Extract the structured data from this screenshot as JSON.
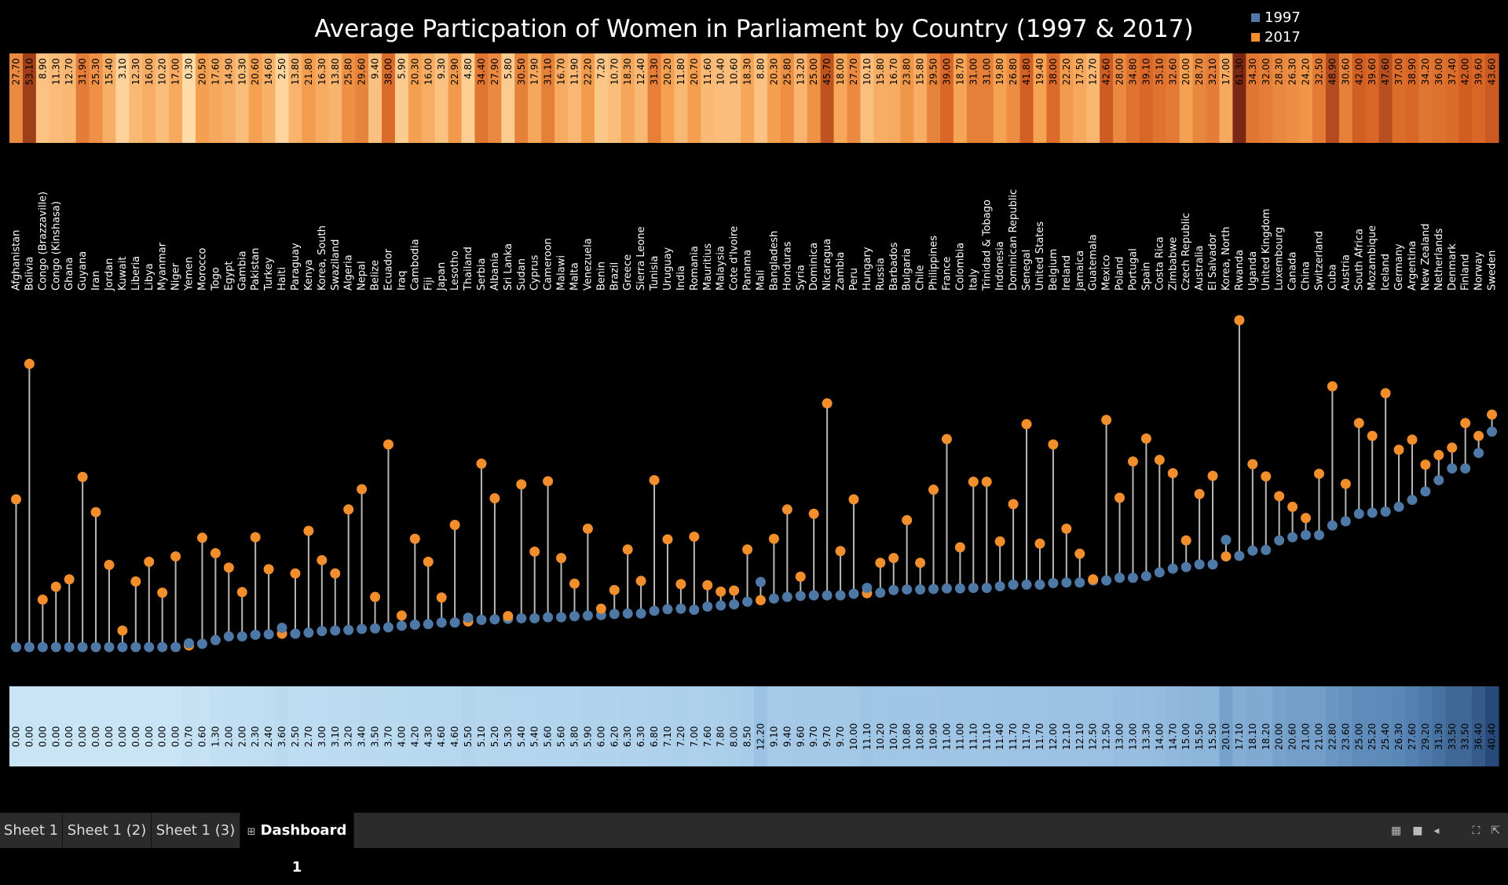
{
  "title": "Average Particpation of Women in Parliament by Country (1997 & 2017)",
  "legend": [
    {
      "label": "1997",
      "color": "#4e79a7"
    },
    {
      "label": "2017",
      "color": "#f28e2b"
    }
  ],
  "tabs": [
    {
      "label": "Sheet 1",
      "active": false
    },
    {
      "label": "Sheet 1 (2)",
      "active": false
    },
    {
      "label": "Sheet 1 (3)",
      "active": false
    },
    {
      "label": "Dashboard 1",
      "active": true,
      "icon": "dashboard-grid-icon"
    }
  ],
  "toolbar_icons": [
    "presentation-view-icon",
    "single-view-icon",
    "back-icon",
    "fullscreen-icon",
    "share-icon"
  ],
  "chart_data": {
    "type": "scatter",
    "title": "Average Particpation of Women in Parliament by Country (1997 & 2017)",
    "series": [
      {
        "name": "1997",
        "color": "#4e79a7"
      },
      {
        "name": "2017",
        "color": "#f28e2b"
      }
    ],
    "ylim": [
      0,
      62
    ],
    "countries": [
      {
        "name": "Afghanistan",
        "v1997": 0.0,
        "v2017": 27.7
      },
      {
        "name": "Bolivia",
        "v1997": 0.0,
        "v2017": 53.1
      },
      {
        "name": "Congo (Brazzaville)",
        "v1997": 0.0,
        "v2017": 8.9
      },
      {
        "name": "Congo (Kinshasa)",
        "v1997": 0.0,
        "v2017": 11.3
      },
      {
        "name": "Ghana",
        "v1997": 0.0,
        "v2017": 12.7
      },
      {
        "name": "Guyana",
        "v1997": 0.0,
        "v2017": 31.9
      },
      {
        "name": "Iran",
        "v1997": 0.0,
        "v2017": 25.3
      },
      {
        "name": "Jordan",
        "v1997": 0.0,
        "v2017": 15.4
      },
      {
        "name": "Kuwait",
        "v1997": 0.0,
        "v2017": 3.1
      },
      {
        "name": "Liberia",
        "v1997": 0.0,
        "v2017": 12.3
      },
      {
        "name": "Libya",
        "v1997": 0.0,
        "v2017": 16.0
      },
      {
        "name": "Myanmar",
        "v1997": 0.0,
        "v2017": 10.2
      },
      {
        "name": "Niger",
        "v1997": 0.0,
        "v2017": 17.0
      },
      {
        "name": "Yemen",
        "v1997": 0.7,
        "v2017": 0.3
      },
      {
        "name": "Morocco",
        "v1997": 0.6,
        "v2017": 20.5
      },
      {
        "name": "Togo",
        "v1997": 1.3,
        "v2017": 17.6
      },
      {
        "name": "Egypt",
        "v1997": 2.0,
        "v2017": 14.9
      },
      {
        "name": "Gambia",
        "v1997": 2.0,
        "v2017": 10.3
      },
      {
        "name": "Pakistan",
        "v1997": 2.3,
        "v2017": 20.6
      },
      {
        "name": "Turkey",
        "v1997": 2.4,
        "v2017": 14.6
      },
      {
        "name": "Haiti",
        "v1997": 3.6,
        "v2017": 2.5
      },
      {
        "name": "Paraguay",
        "v1997": 2.5,
        "v2017": 13.8
      },
      {
        "name": "Kenya",
        "v1997": 2.7,
        "v2017": 21.8
      },
      {
        "name": "Korea, South",
        "v1997": 3.0,
        "v2017": 16.3
      },
      {
        "name": "Swaziland",
        "v1997": 3.1,
        "v2017": 13.8
      },
      {
        "name": "Algeria",
        "v1997": 3.2,
        "v2017": 25.8
      },
      {
        "name": "Nepal",
        "v1997": 3.4,
        "v2017": 29.6
      },
      {
        "name": "Belize",
        "v1997": 3.5,
        "v2017": 9.4
      },
      {
        "name": "Ecuador",
        "v1997": 3.7,
        "v2017": 38.0
      },
      {
        "name": "Iraq",
        "v1997": 4.0,
        "v2017": 5.9
      },
      {
        "name": "Cambodia",
        "v1997": 4.2,
        "v2017": 20.3
      },
      {
        "name": "Fiji",
        "v1997": 4.3,
        "v2017": 16.0
      },
      {
        "name": "Japan",
        "v1997": 4.6,
        "v2017": 9.3
      },
      {
        "name": "Lesotho",
        "v1997": 4.6,
        "v2017": 22.9
      },
      {
        "name": "Thailand",
        "v1997": 5.5,
        "v2017": 4.8
      },
      {
        "name": "Serbia",
        "v1997": 5.1,
        "v2017": 34.4
      },
      {
        "name": "Albania",
        "v1997": 5.2,
        "v2017": 27.9
      },
      {
        "name": "Sri Lanka",
        "v1997": 5.3,
        "v2017": 5.8
      },
      {
        "name": "Sudan",
        "v1997": 5.4,
        "v2017": 30.5
      },
      {
        "name": "Cyprus",
        "v1997": 5.4,
        "v2017": 17.9
      },
      {
        "name": "Cameroon",
        "v1997": 5.6,
        "v2017": 31.1
      },
      {
        "name": "Malawi",
        "v1997": 5.6,
        "v2017": 16.7
      },
      {
        "name": "Malta",
        "v1997": 5.8,
        "v2017": 11.9
      },
      {
        "name": "Venezuela",
        "v1997": 5.9,
        "v2017": 22.2
      },
      {
        "name": "Benin",
        "v1997": 6.0,
        "v2017": 7.2
      },
      {
        "name": "Brazil",
        "v1997": 6.2,
        "v2017": 10.7
      },
      {
        "name": "Greece",
        "v1997": 6.3,
        "v2017": 18.3
      },
      {
        "name": "Sierra Leone",
        "v1997": 6.3,
        "v2017": 12.4
      },
      {
        "name": "Tunisia",
        "v1997": 6.8,
        "v2017": 31.3
      },
      {
        "name": "Uruguay",
        "v1997": 7.1,
        "v2017": 20.2
      },
      {
        "name": "India",
        "v1997": 7.2,
        "v2017": 11.8
      },
      {
        "name": "Romania",
        "v1997": 7.0,
        "v2017": 20.7
      },
      {
        "name": "Mauritius",
        "v1997": 7.6,
        "v2017": 11.6
      },
      {
        "name": "Malaysia",
        "v1997": 7.8,
        "v2017": 10.4
      },
      {
        "name": "Cote d'Ivoire",
        "v1997": 8.0,
        "v2017": 10.6
      },
      {
        "name": "Panama",
        "v1997": 8.5,
        "v2017": 18.3
      },
      {
        "name": "Mali",
        "v1997": 12.2,
        "v2017": 8.8
      },
      {
        "name": "Bangladesh",
        "v1997": 9.1,
        "v2017": 20.3
      },
      {
        "name": "Honduras",
        "v1997": 9.4,
        "v2017": 25.8
      },
      {
        "name": "Syria",
        "v1997": 9.6,
        "v2017": 13.2
      },
      {
        "name": "Dominica",
        "v1997": 9.7,
        "v2017": 25.0
      },
      {
        "name": "Nicaragua",
        "v1997": 9.7,
        "v2017": 45.7
      },
      {
        "name": "Zambia",
        "v1997": 9.7,
        "v2017": 18.0
      },
      {
        "name": "Peru",
        "v1997": 10.0,
        "v2017": 27.7
      },
      {
        "name": "Hungary",
        "v1997": 11.1,
        "v2017": 10.1
      },
      {
        "name": "Russia",
        "v1997": 10.2,
        "v2017": 15.8
      },
      {
        "name": "Barbados",
        "v1997": 10.7,
        "v2017": 16.7
      },
      {
        "name": "Bulgaria",
        "v1997": 10.8,
        "v2017": 23.8
      },
      {
        "name": "Chile",
        "v1997": 10.8,
        "v2017": 15.8
      },
      {
        "name": "Philippines",
        "v1997": 10.9,
        "v2017": 29.5
      },
      {
        "name": "France",
        "v1997": 11.0,
        "v2017": 39.0
      },
      {
        "name": "Colombia",
        "v1997": 11.0,
        "v2017": 18.7
      },
      {
        "name": "Italy",
        "v1997": 11.1,
        "v2017": 31.0
      },
      {
        "name": "Trinidad & Tobago",
        "v1997": 11.1,
        "v2017": 31.0
      },
      {
        "name": "Indonesia",
        "v1997": 11.4,
        "v2017": 19.8
      },
      {
        "name": "Dominican Republic",
        "v1997": 11.7,
        "v2017": 26.8
      },
      {
        "name": "Senegal",
        "v1997": 11.7,
        "v2017": 41.8
      },
      {
        "name": "United States",
        "v1997": 11.7,
        "v2017": 19.4
      },
      {
        "name": "Belgium",
        "v1997": 12.0,
        "v2017": 38.0
      },
      {
        "name": "Ireland",
        "v1997": 12.1,
        "v2017": 22.2
      },
      {
        "name": "Jamaica",
        "v1997": 12.1,
        "v2017": 17.5
      },
      {
        "name": "Guatemala",
        "v1997": 12.5,
        "v2017": 12.7
      },
      {
        "name": "Mexico",
        "v1997": 12.5,
        "v2017": 42.6
      },
      {
        "name": "Poland",
        "v1997": 13.0,
        "v2017": 28.0
      },
      {
        "name": "Portugal",
        "v1997": 13.0,
        "v2017": 34.8
      },
      {
        "name": "Spain",
        "v1997": 13.3,
        "v2017": 39.1
      },
      {
        "name": "Costa Rica",
        "v1997": 14.0,
        "v2017": 35.1
      },
      {
        "name": "Zimbabwe",
        "v1997": 14.7,
        "v2017": 32.6
      },
      {
        "name": "Czech Republic",
        "v1997": 15.0,
        "v2017": 20.0
      },
      {
        "name": "Australia",
        "v1997": 15.5,
        "v2017": 28.7
      },
      {
        "name": "El Salvador",
        "v1997": 15.5,
        "v2017": 32.1
      },
      {
        "name": "Korea, North",
        "v1997": 20.1,
        "v2017": 17.0
      },
      {
        "name": "Rwanda",
        "v1997": 17.1,
        "v2017": 61.3
      },
      {
        "name": "Uganda",
        "v1997": 18.1,
        "v2017": 34.3
      },
      {
        "name": "United Kingdom",
        "v1997": 18.2,
        "v2017": 32.0
      },
      {
        "name": "Luxembourg",
        "v1997": 20.0,
        "v2017": 28.3
      },
      {
        "name": "Canada",
        "v1997": 20.6,
        "v2017": 26.3
      },
      {
        "name": "China",
        "v1997": 21.0,
        "v2017": 24.2
      },
      {
        "name": "Switzerland",
        "v1997": 21.0,
        "v2017": 32.5
      },
      {
        "name": "Cuba",
        "v1997": 22.8,
        "v2017": 48.9
      },
      {
        "name": "Austria",
        "v1997": 23.6,
        "v2017": 30.6
      },
      {
        "name": "South Africa",
        "v1997": 25.0,
        "v2017": 42.0
      },
      {
        "name": "Mozambique",
        "v1997": 25.2,
        "v2017": 39.6
      },
      {
        "name": "Iceland",
        "v1997": 25.4,
        "v2017": 47.6
      },
      {
        "name": "Germany",
        "v1997": 26.3,
        "v2017": 37.0
      },
      {
        "name": "Argentina",
        "v1997": 27.6,
        "v2017": 38.9
      },
      {
        "name": "New Zealand",
        "v1997": 29.2,
        "v2017": 34.2
      },
      {
        "name": "Netherlands",
        "v1997": 31.3,
        "v2017": 36.0
      },
      {
        "name": "Denmark",
        "v1997": 33.5,
        "v2017": 37.4
      },
      {
        "name": "Finland",
        "v1997": 33.5,
        "v2017": 42.0
      },
      {
        "name": "Norway",
        "v1997": 36.4,
        "v2017": 39.6
      },
      {
        "name": "Sweden",
        "v1997": 40.4,
        "v2017": 43.6
      }
    ]
  }
}
